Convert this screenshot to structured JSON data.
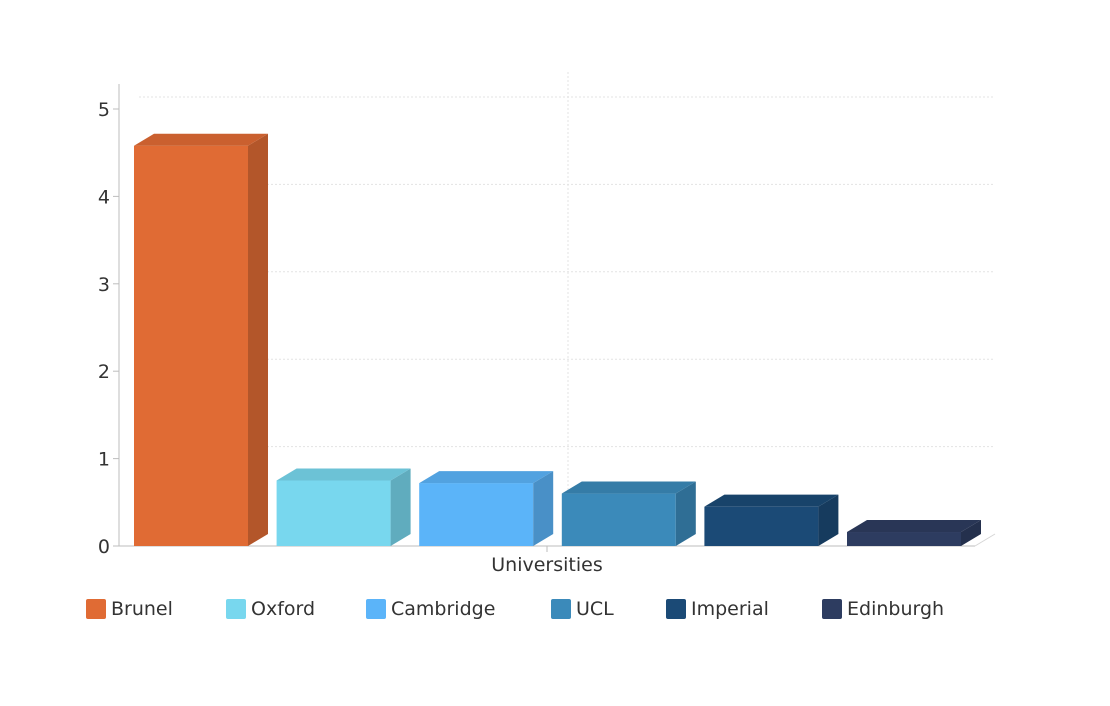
{
  "chart_data": {
    "type": "bar",
    "title": "",
    "xlabel": "Universities",
    "ylabel": "",
    "ylim": [
      0,
      5
    ],
    "yticks": [
      "0",
      "1",
      "2",
      "3",
      "4",
      "5"
    ],
    "grid": true,
    "legend_position": "bottom",
    "three_d": true,
    "series": [
      {
        "name": "Brunel",
        "value": 4.58,
        "color": "#e06b34"
      },
      {
        "name": "Oxford",
        "value": 0.75,
        "color": "#78d7ee"
      },
      {
        "name": "Cambridge",
        "value": 0.72,
        "color": "#5bb4f9"
      },
      {
        "name": "UCL",
        "value": 0.6,
        "color": "#3b8aba"
      },
      {
        "name": "Imperial",
        "value": 0.45,
        "color": "#1b4a76"
      },
      {
        "name": "Edinburgh",
        "value": 0.16,
        "color": "#2d3c60"
      }
    ]
  }
}
